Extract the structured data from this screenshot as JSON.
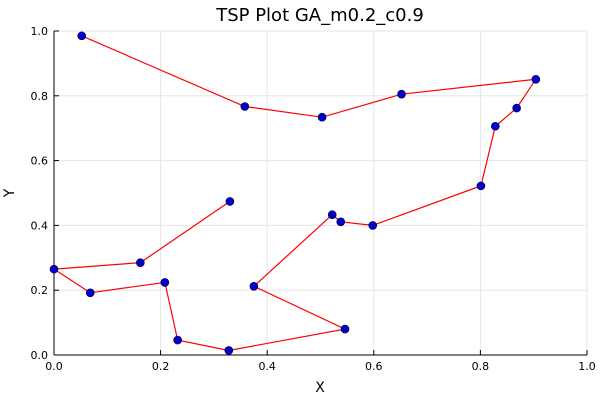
{
  "chart_data": {
    "type": "line",
    "title": "TSP Plot GA_m0.2_c0.9",
    "xlabel": "X",
    "ylabel": "Y",
    "xlim": [
      0.0,
      1.0
    ],
    "ylim": [
      0.0,
      1.0
    ],
    "x_ticks": [
      "0.0",
      "0.2",
      "0.4",
      "0.6",
      "0.8",
      "1.0"
    ],
    "y_ticks": [
      "0.0",
      "0.2",
      "0.4",
      "0.6",
      "0.8",
      "1.0"
    ],
    "grid": true,
    "legend": "none",
    "line_color": "#ff0000",
    "marker_color": "#0000cc",
    "points": [
      [
        0.052,
        0.985
      ],
      [
        0.358,
        0.767
      ],
      [
        0.503,
        0.734
      ],
      [
        0.652,
        0.805
      ],
      [
        0.904,
        0.851
      ],
      [
        0.868,
        0.762
      ],
      [
        0.828,
        0.706
      ],
      [
        0.801,
        0.522
      ],
      [
        0.598,
        0.4
      ],
      [
        0.538,
        0.411
      ],
      [
        0.522,
        0.433
      ],
      [
        0.375,
        0.212
      ],
      [
        0.546,
        0.08
      ],
      [
        0.328,
        0.014
      ],
      [
        0.232,
        0.046
      ],
      [
        0.208,
        0.224
      ],
      [
        0.068,
        0.192
      ],
      [
        0.0,
        0.265
      ],
      [
        0.162,
        0.285
      ],
      [
        0.33,
        0.474
      ]
    ]
  }
}
